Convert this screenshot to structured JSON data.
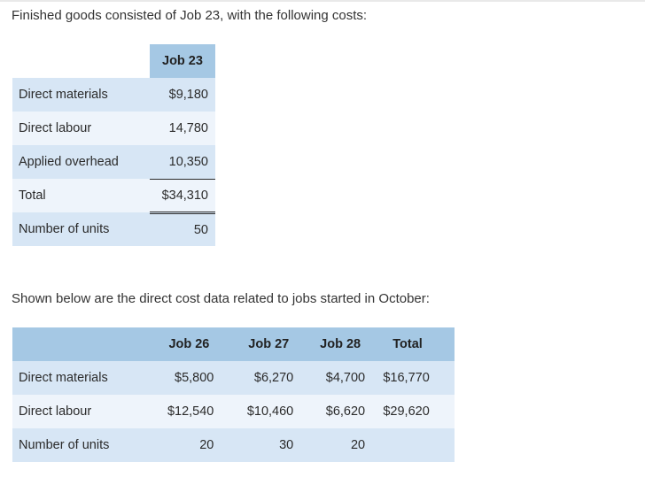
{
  "intro_text": "Finished goods consisted of Job 23, with the following costs:",
  "table1": {
    "header": "Job 23",
    "rows": [
      {
        "label": "Direct materials",
        "value": "$9,180"
      },
      {
        "label": "Direct labour",
        "value": "14,780"
      },
      {
        "label": "Applied overhead",
        "value": "10,350"
      },
      {
        "label": "Total",
        "value": "$34,310"
      },
      {
        "label": "Number of units",
        "value": "50"
      }
    ]
  },
  "second_text": "Shown below are the direct cost data related to jobs started in October:",
  "table2": {
    "headers": [
      "Job 26",
      "Job 27",
      "Job 28",
      "Total"
    ],
    "rows": [
      {
        "label": "Direct materials",
        "values": [
          "$5,800",
          "$6,270",
          "$4,700",
          "$16,770"
        ]
      },
      {
        "label": "Direct labour",
        "values": [
          "$12,540",
          "$10,460",
          "$6,620",
          "$29,620"
        ]
      },
      {
        "label": "Number of units",
        "values": [
          "20",
          "30",
          "20",
          ""
        ]
      }
    ]
  },
  "colors": {
    "header_bg": "#a5c8e4",
    "row_dark": "#d7e6f5",
    "row_light": "#eef4fb"
  }
}
